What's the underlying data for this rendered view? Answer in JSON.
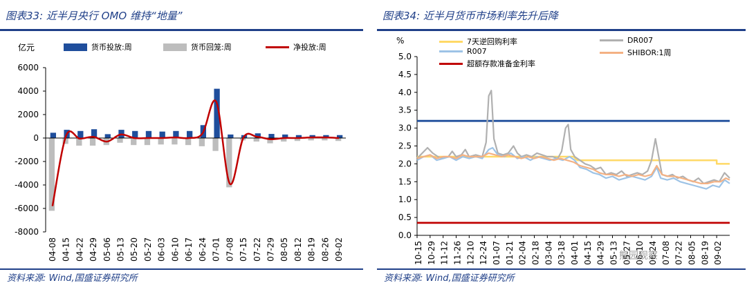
{
  "left": {
    "title": "图表33:  近半月央行 OMO 维持“地量”",
    "source": "资料来源:  Wind,国盛证券研究所",
    "chart_data": {
      "type": "bar",
      "unit": "亿元",
      "ylim": [
        -8000,
        6000
      ],
      "yticks": [
        -8000,
        -6000,
        -4000,
        -2000,
        0,
        2000,
        4000,
        6000
      ],
      "categories": [
        "04-08",
        "04-15",
        "04-22",
        "04-29",
        "05-06",
        "05-13",
        "05-20",
        "05-27",
        "06-03",
        "06-10",
        "06-17",
        "06-24",
        "07-01",
        "07-08",
        "07-15",
        "07-22",
        "07-29",
        "08-05",
        "08-12",
        "08-19",
        "08-26",
        "09-02"
      ],
      "legend_position": "top",
      "series": [
        {
          "name": "货币投放:周",
          "type": "bar",
          "color": "#1f4e9c",
          "values": [
            450,
            700,
            600,
            750,
            330,
            700,
            600,
            600,
            550,
            600,
            600,
            1100,
            4200,
            300,
            250,
            400,
            350,
            300,
            250,
            250,
            250,
            250
          ]
        },
        {
          "name": "货币回笼:周",
          "type": "bar",
          "color": "#bdbdbd",
          "values": [
            -6200,
            -500,
            -650,
            -650,
            -600,
            -400,
            -600,
            -600,
            -550,
            -550,
            -600,
            -700,
            -1100,
            -4200,
            -200,
            -300,
            -450,
            -300,
            -250,
            -200,
            -200,
            -250
          ]
        },
        {
          "name": "净投放:周",
          "type": "line",
          "color": "#c00000",
          "values": [
            -5800,
            200,
            -50,
            100,
            -300,
            300,
            0,
            0,
            0,
            50,
            0,
            400,
            3100,
            -3900,
            50,
            100,
            -100,
            0,
            0,
            50,
            50,
            0
          ]
        }
      ]
    }
  },
  "right": {
    "title": "图表34:  近半月货币市场利率先升后降",
    "source": "资料来源:  Wind,国盛证券研究所",
    "watermark": "熊园观察",
    "chart_data": {
      "type": "line",
      "unit": "%",
      "ylim": [
        0,
        5.0
      ],
      "yticks": [
        0.0,
        0.5,
        1.0,
        1.5,
        2.0,
        2.5,
        3.0,
        3.5,
        4.0,
        4.5,
        5.0
      ],
      "ytick_labels": [
        "0.0",
        "0.5",
        "1.0",
        "1.5",
        "2.0",
        "2.5",
        "3.0",
        "3.5",
        "4.0",
        "4.5",
        "5.0"
      ],
      "x_labels": [
        "10-15",
        "10-29",
        "11-12",
        "11-26",
        "12-10",
        "12-24",
        "01-07",
        "01-21",
        "02-04",
        "02-18",
        "03-04",
        "03-18",
        "04-01",
        "04-15",
        "04-29",
        "05-13",
        "05-27",
        "06-10",
        "06-24",
        "07-08",
        "07-22",
        "08-05",
        "08-19",
        "09-02"
      ],
      "legend_position": "top",
      "series": [
        {
          "name": "7天逆回购利率",
          "color": "#ffd966",
          "width": 2.5,
          "points": [
            [
              0,
              2.2
            ],
            [
              12,
              2.2
            ],
            [
              12.3,
              2.1
            ],
            [
              23,
              2.1
            ],
            [
              23,
              2.0
            ],
            [
              24,
              2.0
            ]
          ]
        },
        {
          "name": "DR007",
          "color": "#b0b0b0",
          "width": 2.2,
          "points": [
            [
              0,
              2.15
            ],
            [
              0.4,
              2.3
            ],
            [
              0.8,
              2.45
            ],
            [
              1.2,
              2.3
            ],
            [
              1.6,
              2.2
            ],
            [
              2,
              2.15
            ],
            [
              2.4,
              2.2
            ],
            [
              2.7,
              2.35
            ],
            [
              3,
              2.2
            ],
            [
              3.4,
              2.25
            ],
            [
              3.7,
              2.4
            ],
            [
              4,
              2.2
            ],
            [
              4.5,
              2.25
            ],
            [
              5,
              2.2
            ],
            [
              5.3,
              2.6
            ],
            [
              5.5,
              3.9
            ],
            [
              5.7,
              4.05
            ],
            [
              5.9,
              2.7
            ],
            [
              6.2,
              2.3
            ],
            [
              6.6,
              2.25
            ],
            [
              7,
              2.3
            ],
            [
              7.4,
              2.5
            ],
            [
              7.7,
              2.3
            ],
            [
              8,
              2.2
            ],
            [
              8.4,
              2.25
            ],
            [
              8.8,
              2.2
            ],
            [
              9.2,
              2.3
            ],
            [
              9.6,
              2.25
            ],
            [
              10,
              2.2
            ],
            [
              10.4,
              2.2
            ],
            [
              10.8,
              2.15
            ],
            [
              11.1,
              2.35
            ],
            [
              11.4,
              3.0
            ],
            [
              11.6,
              3.1
            ],
            [
              11.8,
              2.4
            ],
            [
              12.1,
              2.2
            ],
            [
              12.5,
              2.1
            ],
            [
              12.9,
              2.0
            ],
            [
              13.3,
              1.95
            ],
            [
              13.7,
              1.85
            ],
            [
              14.1,
              1.9
            ],
            [
              14.5,
              1.7
            ],
            [
              14.9,
              1.75
            ],
            [
              15.3,
              1.7
            ],
            [
              15.7,
              1.8
            ],
            [
              16.1,
              1.65
            ],
            [
              16.5,
              1.7
            ],
            [
              16.9,
              1.75
            ],
            [
              17.3,
              1.7
            ],
            [
              17.7,
              1.8
            ],
            [
              18,
              2.1
            ],
            [
              18.3,
              2.7
            ],
            [
              18.5,
              2.3
            ],
            [
              18.8,
              1.7
            ],
            [
              19.2,
              1.65
            ],
            [
              19.6,
              1.7
            ],
            [
              20,
              1.6
            ],
            [
              20.4,
              1.65
            ],
            [
              20.8,
              1.55
            ],
            [
              21.2,
              1.5
            ],
            [
              21.6,
              1.6
            ],
            [
              22,
              1.45
            ],
            [
              22.4,
              1.5
            ],
            [
              22.8,
              1.55
            ],
            [
              23.2,
              1.5
            ],
            [
              23.6,
              1.75
            ],
            [
              24,
              1.6
            ]
          ]
        },
        {
          "name": "R007",
          "color": "#9dc3e6",
          "width": 2.2,
          "points": [
            [
              0,
              2.1
            ],
            [
              0.5,
              2.2
            ],
            [
              1,
              2.25
            ],
            [
              1.5,
              2.1
            ],
            [
              2,
              2.15
            ],
            [
              2.5,
              2.2
            ],
            [
              3,
              2.1
            ],
            [
              3.5,
              2.2
            ],
            [
              4,
              2.15
            ],
            [
              4.5,
              2.2
            ],
            [
              5,
              2.15
            ],
            [
              5.5,
              2.4
            ],
            [
              5.8,
              2.45
            ],
            [
              6.2,
              2.25
            ],
            [
              6.7,
              2.2
            ],
            [
              7.2,
              2.3
            ],
            [
              7.7,
              2.15
            ],
            [
              8.2,
              2.2
            ],
            [
              8.7,
              2.1
            ],
            [
              9.2,
              2.2
            ],
            [
              9.7,
              2.15
            ],
            [
              10.2,
              2.1
            ],
            [
              10.7,
              2.15
            ],
            [
              11.2,
              2.1
            ],
            [
              11.7,
              2.2
            ],
            [
              12.1,
              2.1
            ],
            [
              12.5,
              1.9
            ],
            [
              13,
              1.85
            ],
            [
              13.5,
              1.75
            ],
            [
              14,
              1.7
            ],
            [
              14.5,
              1.6
            ],
            [
              15,
              1.65
            ],
            [
              15.5,
              1.55
            ],
            [
              16,
              1.6
            ],
            [
              16.5,
              1.65
            ],
            [
              17,
              1.6
            ],
            [
              17.5,
              1.55
            ],
            [
              18,
              1.65
            ],
            [
              18.4,
              1.9
            ],
            [
              18.7,
              1.6
            ],
            [
              19.2,
              1.55
            ],
            [
              19.7,
              1.6
            ],
            [
              20.2,
              1.5
            ],
            [
              20.7,
              1.45
            ],
            [
              21.2,
              1.4
            ],
            [
              21.7,
              1.35
            ],
            [
              22.2,
              1.3
            ],
            [
              22.7,
              1.4
            ],
            [
              23.2,
              1.35
            ],
            [
              23.6,
              1.55
            ],
            [
              24,
              1.45
            ]
          ]
        },
        {
          "name": "SHIBOR:1周",
          "color": "#f4b183",
          "width": 2.2,
          "points": [
            [
              0,
              2.15
            ],
            [
              0.5,
              2.2
            ],
            [
              1,
              2.25
            ],
            [
              1.5,
              2.15
            ],
            [
              2,
              2.2
            ],
            [
              2.5,
              2.2
            ],
            [
              3,
              2.15
            ],
            [
              3.5,
              2.25
            ],
            [
              4,
              2.2
            ],
            [
              4.5,
              2.2
            ],
            [
              5,
              2.2
            ],
            [
              5.5,
              2.3
            ],
            [
              6,
              2.25
            ],
            [
              6.5,
              2.2
            ],
            [
              7,
              2.25
            ],
            [
              7.5,
              2.2
            ],
            [
              8,
              2.15
            ],
            [
              8.5,
              2.2
            ],
            [
              9,
              2.15
            ],
            [
              9.5,
              2.2
            ],
            [
              10,
              2.15
            ],
            [
              10.5,
              2.1
            ],
            [
              11,
              2.15
            ],
            [
              11.5,
              2.1
            ],
            [
              12,
              2.05
            ],
            [
              12.5,
              1.95
            ],
            [
              13,
              1.9
            ],
            [
              13.5,
              1.85
            ],
            [
              14,
              1.75
            ],
            [
              14.5,
              1.7
            ],
            [
              15,
              1.7
            ],
            [
              15.5,
              1.65
            ],
            [
              16,
              1.7
            ],
            [
              16.5,
              1.65
            ],
            [
              17,
              1.7
            ],
            [
              17.5,
              1.65
            ],
            [
              18,
              1.7
            ],
            [
              18.4,
              1.95
            ],
            [
              18.8,
              1.7
            ],
            [
              19.3,
              1.65
            ],
            [
              19.8,
              1.65
            ],
            [
              20.3,
              1.6
            ],
            [
              20.8,
              1.55
            ],
            [
              21.3,
              1.5
            ],
            [
              21.8,
              1.45
            ],
            [
              22.3,
              1.45
            ],
            [
              22.8,
              1.5
            ],
            [
              23.3,
              1.5
            ],
            [
              23.7,
              1.6
            ],
            [
              24,
              1.55
            ]
          ]
        },
        {
          "name": "超额存款准备金利率",
          "color": "#c00000",
          "width": 2.8,
          "points": [
            [
              0,
              0.35
            ],
            [
              24,
              0.35
            ]
          ]
        },
        {
          "name": "",
          "color": "#1f4e9c",
          "width": 2.8,
          "points": [
            [
              0,
              3.2
            ],
            [
              24,
              3.2
            ]
          ]
        }
      ]
    }
  }
}
